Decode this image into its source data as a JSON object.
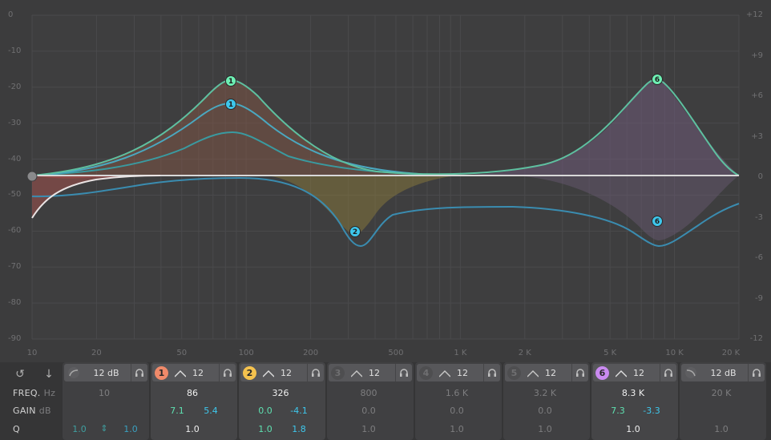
{
  "graph": {
    "db_scale_left": [
      "0",
      "-10",
      "-20",
      "-30",
      "-40",
      "-50",
      "-60",
      "-70",
      "-80",
      "-90"
    ],
    "gain_scale_right": [
      "+12",
      "+9",
      "+6",
      "+3",
      "0",
      "-3",
      "-6",
      "-9",
      "-12"
    ],
    "freq_scale": [
      "10",
      "20",
      "50",
      "100",
      "200",
      "500",
      "1 K",
      "2 K",
      "5 K",
      "10 K",
      "20 K"
    ],
    "nodes": [
      {
        "label": "1",
        "color": "#6ef0b4"
      },
      {
        "label": "1",
        "color": "#3ec7ec"
      },
      {
        "label": "2",
        "color": "#3ec7ec"
      },
      {
        "label": "6",
        "color": "#6ef0b4"
      },
      {
        "label": "6",
        "color": "#3ec7ec"
      }
    ],
    "colors": {
      "mid": "#6ec8a0",
      "side": "#3ea8c8",
      "lowcut": "#e8e0e0"
    }
  },
  "controls": {
    "row_labels": {
      "freq": "FREQ.",
      "freq_unit": "Hz",
      "gain": "GAIN",
      "gain_unit": "dB",
      "q": "Q"
    },
    "icons": {
      "reset": "reset-icon",
      "down": "arrow-down-icon"
    },
    "bands": [
      {
        "id": "low-cut",
        "num": "",
        "slope": "12 dB",
        "freq": "10",
        "gain_a": "",
        "gain_b": "",
        "q_a": "1.0",
        "q_b": "1.0",
        "q_link": "⇕"
      },
      {
        "id": "band-1",
        "num": "1",
        "color": "#f08a6a",
        "slope": "12",
        "freq": "86",
        "gain_a": "7.1",
        "gain_b": "5.4",
        "q": "1.0"
      },
      {
        "id": "band-2",
        "num": "2",
        "color": "#f5c24e",
        "slope": "12",
        "freq": "326",
        "gain_a": "0.0",
        "gain_b": "-4.1",
        "q_a": "1.0",
        "q_b": "1.8"
      },
      {
        "id": "band-3",
        "num": "3",
        "slope": "12",
        "freq": "800",
        "gain": "0.0",
        "q": "1.0"
      },
      {
        "id": "band-4",
        "num": "4",
        "slope": "12",
        "freq": "1.6 K",
        "gain": "0.0",
        "q": "1.0"
      },
      {
        "id": "band-5",
        "num": "5",
        "slope": "12",
        "freq": "3.2 K",
        "gain": "0.0",
        "q": "1.0"
      },
      {
        "id": "band-6",
        "num": "6",
        "color": "#c98af0",
        "slope": "12",
        "freq": "8.3 K",
        "gain_a": "7.3",
        "gain_b": "-3.3",
        "q": "1.0"
      },
      {
        "id": "high-cut",
        "num": "",
        "slope": "12 dB",
        "freq": "20 K",
        "q": "1.0"
      }
    ]
  }
}
